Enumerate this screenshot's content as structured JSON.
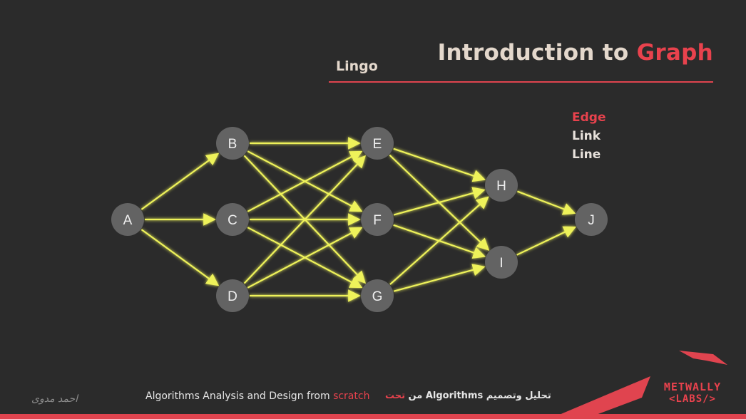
{
  "header": {
    "title_main": "Introduction to",
    "title_accent": "Graph",
    "subtitle": "Lingo"
  },
  "terms": [
    "Edge",
    "Link",
    "Line"
  ],
  "graph": {
    "nodes": [
      "A",
      "B",
      "C",
      "D",
      "E",
      "F",
      "G",
      "H",
      "I",
      "J"
    ],
    "edges": [
      [
        "A",
        "B"
      ],
      [
        "A",
        "C"
      ],
      [
        "A",
        "D"
      ],
      [
        "B",
        "E"
      ],
      [
        "B",
        "F"
      ],
      [
        "B",
        "G"
      ],
      [
        "C",
        "E"
      ],
      [
        "C",
        "F"
      ],
      [
        "C",
        "G"
      ],
      [
        "D",
        "E"
      ],
      [
        "D",
        "F"
      ],
      [
        "D",
        "G"
      ],
      [
        "E",
        "H"
      ],
      [
        "E",
        "I"
      ],
      [
        "F",
        "H"
      ],
      [
        "F",
        "I"
      ],
      [
        "G",
        "H"
      ],
      [
        "G",
        "I"
      ],
      [
        "H",
        "J"
      ],
      [
        "I",
        "J"
      ]
    ],
    "edge_color": "#eef25a",
    "node_color": "#636363"
  },
  "footer": {
    "english_main": "Algorithms Analysis and Design from",
    "english_accent": "scratch",
    "arabic_main": "تحليل وتصميم Algorithms من",
    "arabic_accent": "تحت",
    "signature": "احمد مدوى"
  },
  "logo": {
    "line1": "METWALLY",
    "line2": "<LABS/>"
  },
  "colors": {
    "accent": "#e8424d",
    "background": "#2b2b2b"
  }
}
